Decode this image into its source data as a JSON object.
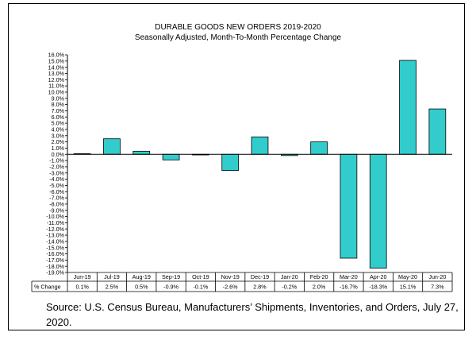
{
  "chart_data": {
    "type": "bar",
    "title": "DURABLE GOODS NEW ORDERS 2019-2020",
    "subtitle": "Seasonally Adjusted,  Month-To-Month Percentage Change",
    "categories": [
      "Jun-19",
      "Jul-19",
      "Aug-19",
      "Sep-19",
      "Oct-19",
      "Nov-19",
      "Dec-19",
      "Jan-20",
      "Feb-20",
      "Mar-20",
      "Apr-20",
      "May-20",
      "Jun-20"
    ],
    "values": [
      0.1,
      2.5,
      0.5,
      -0.9,
      -0.1,
      -2.6,
      2.8,
      -0.2,
      2.0,
      -16.7,
      -18.3,
      15.1,
      7.3
    ],
    "table_row_label": "% Change",
    "table_values": [
      "0.1%",
      "2.5%",
      "0.5%",
      "-0.9%",
      "-0.1%",
      "-2.6%",
      "2.8%",
      "-0.2%",
      "2.0%",
      "-16.7%",
      "-18.3%",
      "15.1%",
      "7.3%"
    ],
    "ylim": [
      -19,
      16
    ],
    "ytick_step": 1,
    "bar_color": "#33cccc",
    "xlabel": "",
    "ylabel": "",
    "grid": false
  },
  "source_text": "Source: U.S. Census Bureau, Manufacturers’ Shipments, Inventories, and Orders, July 27, 2020."
}
